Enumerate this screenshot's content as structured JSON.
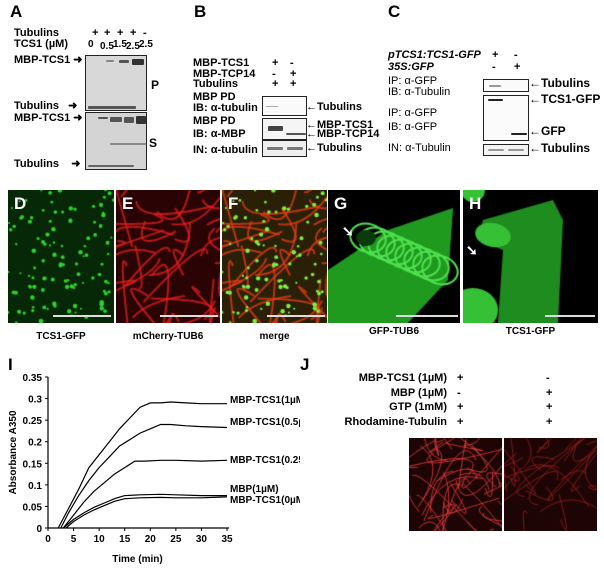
{
  "panels": {
    "A": "A",
    "B": "B",
    "C": "C",
    "D": "D",
    "E": "E",
    "F": "F",
    "G": "G",
    "H": "H",
    "I": "I",
    "J": "J"
  },
  "a": {
    "row1": "Tubulins",
    "row2": "TCS1 (µM)",
    "tub_signs": [
      "+",
      "+",
      "+",
      "+",
      "-"
    ],
    "conc": [
      "0",
      "0.5",
      "1.5",
      "2.5",
      "2.5"
    ],
    "left_labels": [
      "MBP-TCS1",
      "Tubulins",
      "MBP-TCS1",
      "Tubulins"
    ],
    "p": "P",
    "s": "S"
  },
  "b": {
    "conditions": [
      {
        "label": "MBP-TCS1",
        "signs": [
          "+",
          "-"
        ]
      },
      {
        "label": "MBP-TCP14",
        "signs": [
          "-",
          "+"
        ]
      },
      {
        "label": "Tubulins",
        "signs": [
          "+",
          "+"
        ]
      }
    ],
    "blot_labels": [
      "MBP PD",
      "IB: α-tubulin",
      "MBP PD",
      "IB: α-MBP",
      "IN: α-tubulin"
    ],
    "right_labels": [
      "Tubulins",
      "MBP-TCS1",
      "MBP-TCP14",
      "Tubulins"
    ]
  },
  "c": {
    "conditions": [
      {
        "label": "pTCS1:TCS1-GFP",
        "signs": [
          "+",
          "-"
        ]
      },
      {
        "label": "35S:GFP",
        "signs": [
          "-",
          "+"
        ]
      }
    ],
    "blot_labels": [
      "IP: α-GFP",
      "IB: α-Tubulin",
      "IP: α-GFP",
      "IB: α-GFP",
      "IN: α-Tubulin"
    ],
    "right_labels": [
      "Tubulins",
      "TCS1-GFP",
      "GFP",
      "Tubulins"
    ]
  },
  "captions": [
    "TCS1-GFP",
    "mCherry-TUB6",
    "merge",
    "GFP-TUB6",
    "TCS1-GFP"
  ],
  "chart_data": {
    "type": "line",
    "xlabel": "Time (min)",
    "ylabel": "Absorbance A350",
    "xlim": [
      0,
      35
    ],
    "ylim": [
      0,
      0.35
    ],
    "xticks": [
      "0",
      "5",
      "10",
      "15",
      "20",
      "25",
      "30",
      "35"
    ],
    "yticks": [
      "0",
      "0.05",
      "0.1",
      "0.15",
      "0.2",
      "0.25",
      "0.3",
      "0.35"
    ],
    "series": [
      {
        "name": "MBP-TCS1(1µM)",
        "x": [
          2,
          4,
          6,
          8,
          10,
          12,
          14,
          16,
          18,
          20,
          22,
          24,
          27,
          30,
          35
        ],
        "y": [
          0,
          0.045,
          0.09,
          0.14,
          0.17,
          0.2,
          0.23,
          0.255,
          0.28,
          0.29,
          0.29,
          0.292,
          0.29,
          0.288,
          0.288
        ]
      },
      {
        "name": "MBP-TCS1(0.5µM)",
        "x": [
          2.5,
          4,
          6,
          8,
          10,
          12,
          14,
          16,
          18,
          20,
          22,
          24,
          27,
          30,
          35
        ],
        "y": [
          0,
          0.035,
          0.075,
          0.11,
          0.14,
          0.165,
          0.19,
          0.205,
          0.22,
          0.23,
          0.24,
          0.24,
          0.237,
          0.235,
          0.233
        ]
      },
      {
        "name": "MBP-TCS1(0.25µM)",
        "x": [
          3,
          5,
          7,
          9,
          11,
          13,
          15,
          17,
          19,
          22,
          25,
          30,
          35
        ],
        "y": [
          0,
          0.03,
          0.06,
          0.085,
          0.105,
          0.125,
          0.14,
          0.155,
          0.155,
          0.157,
          0.157,
          0.155,
          0.157
        ]
      },
      {
        "name": "MBP(1µM)",
        "x": [
          3,
          5,
          7,
          9,
          11,
          13,
          15,
          18,
          22,
          25,
          30,
          35
        ],
        "y": [
          0,
          0.02,
          0.035,
          0.048,
          0.058,
          0.068,
          0.075,
          0.077,
          0.078,
          0.077,
          0.075,
          0.075
        ]
      },
      {
        "name": "MBP-TCS1(0µM)",
        "x": [
          3.5,
          5,
          7,
          9,
          11,
          13,
          15,
          18,
          22,
          25,
          30,
          35
        ],
        "y": [
          0,
          0.015,
          0.03,
          0.042,
          0.052,
          0.062,
          0.068,
          0.07,
          0.071,
          0.07,
          0.07,
          0.072
        ]
      }
    ]
  },
  "j": {
    "conditions": [
      {
        "label": "MBP-TCS1 (1µM)",
        "signs": [
          "+",
          "-"
        ]
      },
      {
        "label": "MBP (1µM)",
        "signs": [
          "-",
          "+"
        ]
      },
      {
        "label": "GTP (1mM)",
        "signs": [
          "+",
          "+"
        ]
      },
      {
        "label": "Rhodamine-Tubulin",
        "signs": [
          "+",
          "+"
        ]
      }
    ]
  },
  "colors": {
    "gfp": "#2fd02f",
    "mcherry": "#e01818",
    "rhodamine": "#d83030"
  }
}
